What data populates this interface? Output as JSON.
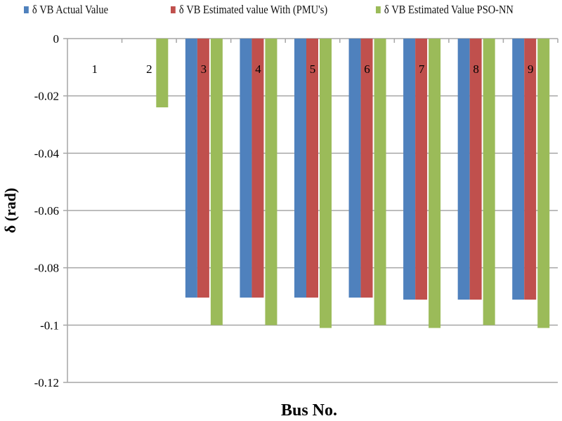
{
  "chart_data": {
    "type": "bar",
    "title": "",
    "xlabel": "Bus No.",
    "ylabel": "δ (rad)",
    "ylim": [
      -0.12,
      0
    ],
    "yticks": [
      "0",
      "-0.02",
      "-0.04",
      "-0.06",
      "-0.08",
      "-0.1",
      "-0.12"
    ],
    "ytick_values": [
      0,
      -0.02,
      -0.04,
      -0.06,
      -0.08,
      -0.1,
      -0.12
    ],
    "grid": true,
    "legend_position": "top",
    "categories": [
      "1",
      "2",
      "3",
      "4",
      "5",
      "6",
      "7",
      "8",
      "9"
    ],
    "series": [
      {
        "name": "δ VB Actual Value",
        "color": "#4f81bd",
        "values": [
          0,
          0,
          -0.0904,
          -0.0904,
          -0.0904,
          -0.0904,
          -0.0911,
          -0.0911,
          -0.0911
        ]
      },
      {
        "name": "δ VB Estimated value With (PMU's)",
        "color": "#c0504d",
        "values": [
          0,
          0,
          -0.0904,
          -0.0904,
          -0.0904,
          -0.0904,
          -0.0911,
          -0.0911,
          -0.0911
        ]
      },
      {
        "name": "δ VB Estimated Value PSO-NN",
        "color": "#9bbb59",
        "values": [
          0,
          -0.024,
          -0.1,
          -0.1,
          -0.101,
          -0.1,
          -0.101,
          -0.1,
          -0.101
        ]
      }
    ]
  }
}
